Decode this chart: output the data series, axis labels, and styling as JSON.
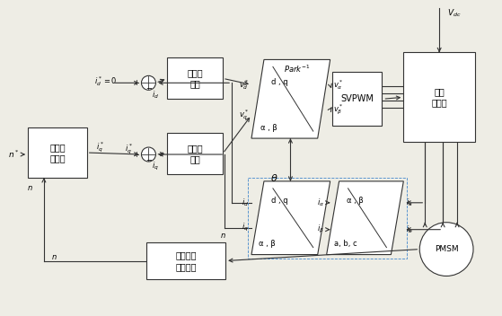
{
  "bg": "#eeede5",
  "bfc": "#ffffff",
  "bec": "#333333",
  "lc": "#333333",
  "lw": 0.8,
  "fs_cn": 7.0,
  "fs_math": 6.5,
  "fs_label": 6.0,
  "adrc": [
    30,
    142,
    66,
    56
  ],
  "flux": [
    186,
    64,
    62,
    46
  ],
  "torq": [
    186,
    148,
    62,
    46
  ],
  "svpwm": [
    370,
    80,
    56,
    60
  ],
  "inv": [
    450,
    58,
    80,
    100
  ],
  "sensor": [
    163,
    270,
    88,
    42
  ],
  "pmsm": [
    498,
    278,
    30
  ],
  "park_inv": [
    280,
    66,
    74,
    88,
    14
  ],
  "park_fwd": [
    280,
    202,
    74,
    82,
    14
  ],
  "clark": [
    364,
    202,
    72,
    82,
    14
  ],
  "sum1": [
    165,
    92,
    8
  ],
  "sum2": [
    165,
    172,
    8
  ]
}
